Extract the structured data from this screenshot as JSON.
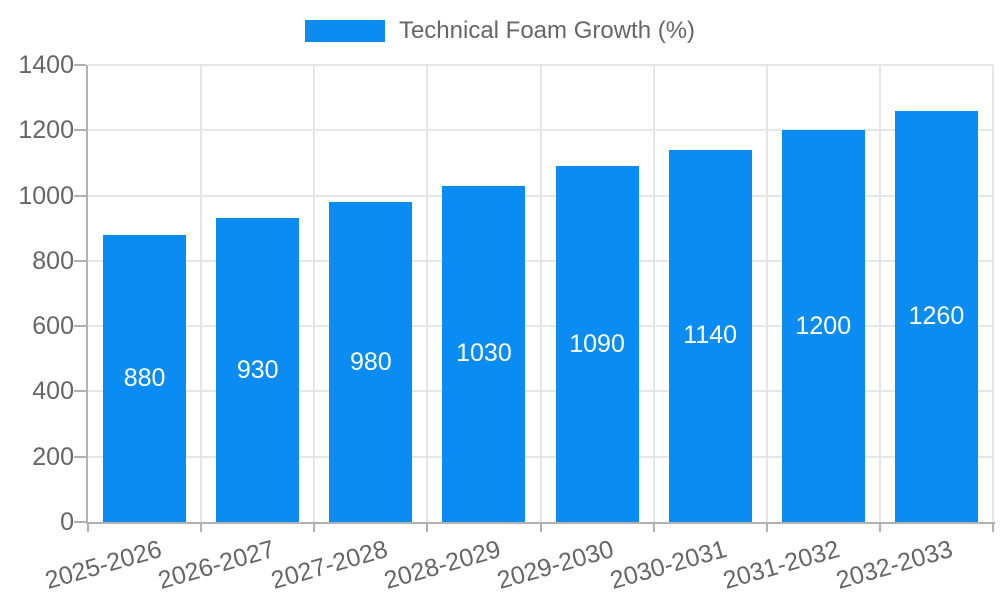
{
  "page": {
    "background": "#ffffff"
  },
  "chart_data": {
    "type": "bar",
    "title": "Technical Foam Growth (%)",
    "legend_position": "top",
    "categories": [
      "2025-2026",
      "2026-2027",
      "2027-2028",
      "2028-2029",
      "2029-2030",
      "2030-2031",
      "2031-2032",
      "2032-2033"
    ],
    "series": [
      {
        "name": "Technical Foam Growth (%)",
        "values": [
          880,
          930,
          980,
          1030,
          1090,
          1140,
          1200,
          1260
        ]
      }
    ],
    "values": [
      880,
      930,
      980,
      1030,
      1090,
      1140,
      1200,
      1260
    ],
    "value_labels": [
      "880",
      "930",
      "980",
      "1030",
      "1090",
      "1140",
      "1200",
      "1260"
    ],
    "xlabel": "",
    "ylabel": "",
    "ylim": [
      0,
      1400
    ],
    "yticks": [
      0,
      200,
      400,
      600,
      800,
      1000,
      1200,
      1400
    ],
    "grid": true,
    "x_tick_rotation_deg": -16,
    "bar_value_labels_centered": true,
    "colors": {
      "bar": "#0a8cf2",
      "value_label": "#ffffff",
      "axis_text": "#666666",
      "legend_text": "#666666",
      "gridline": "#e6e6e6",
      "axis_line": "#b1b1b1",
      "background": "#ffffff"
    }
  }
}
